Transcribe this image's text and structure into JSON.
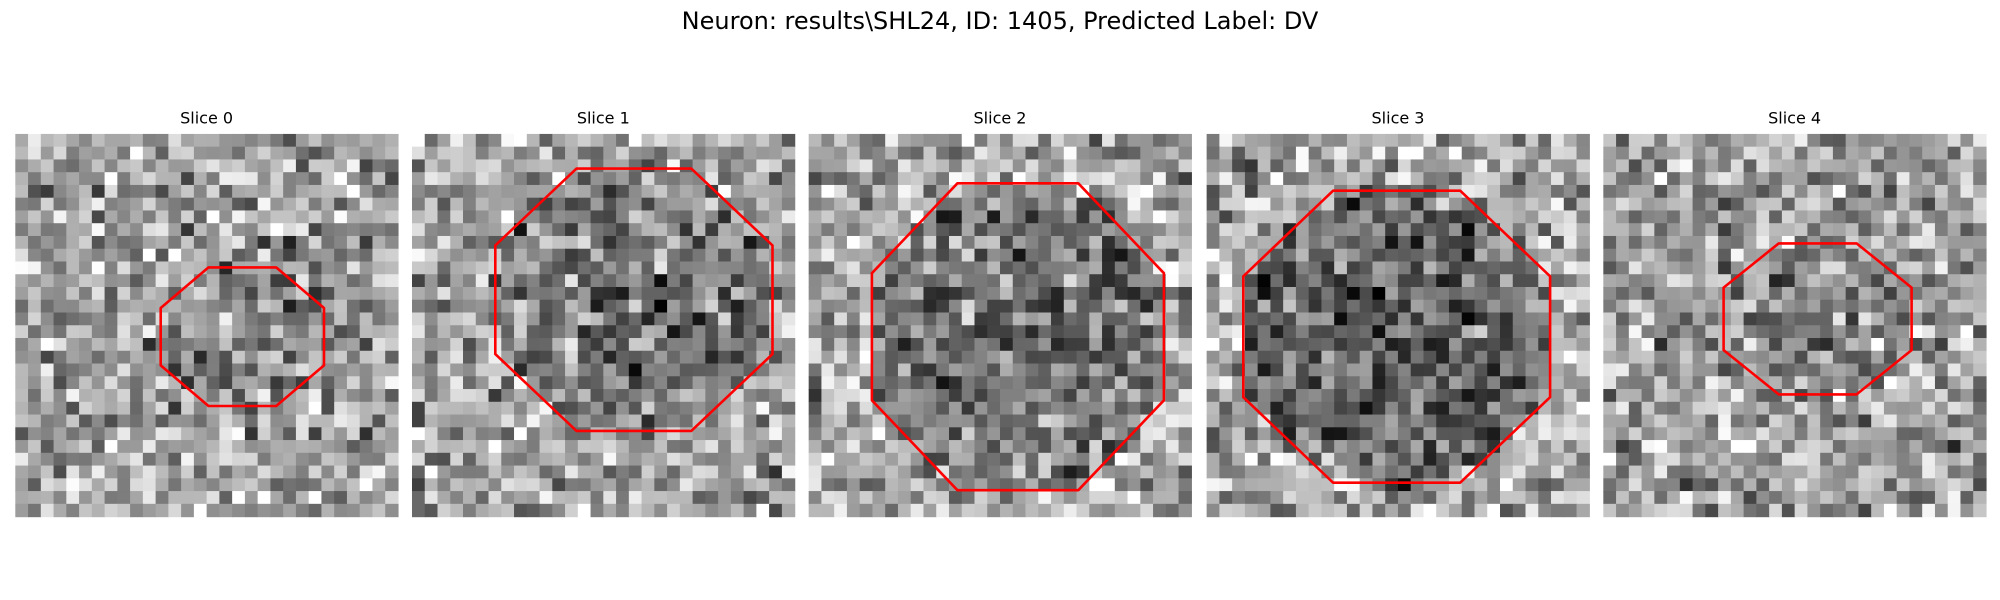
{
  "title": "Neuron: results\\SHL24, ID: 1405, Predicted Label: DV",
  "panels": [
    {
      "title": "Slice 0"
    },
    {
      "title": "Slice 1"
    },
    {
      "title": "Slice 2"
    },
    {
      "title": "Slice 3"
    },
    {
      "title": "Slice 4"
    }
  ]
}
